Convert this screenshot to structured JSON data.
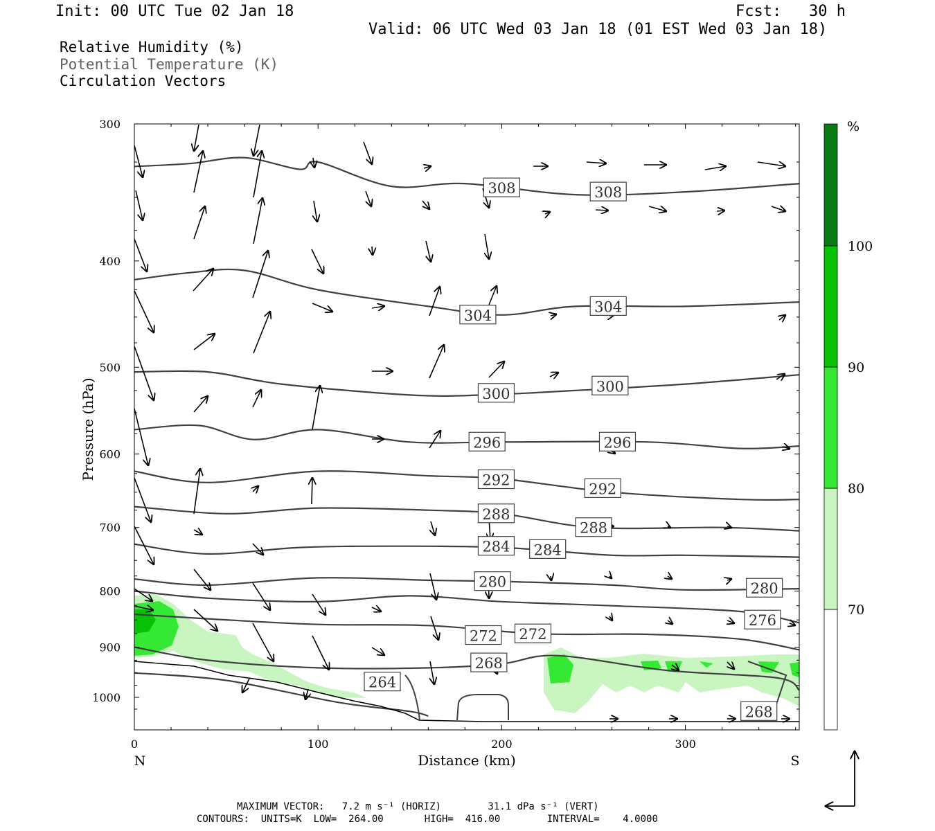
{
  "header": {
    "init": "Init: 00 UTC Tue 02 Jan 18",
    "fcst": "Fcst:   30 h",
    "valid": "Valid: 06 UTC Wed 03 Jan 18 (01 EST Wed 03 Jan 18)"
  },
  "legend": {
    "rh": "Relative Humidity (%)",
    "theta": "Potential Temperature (K)",
    "vectors": "Circulation Vectors"
  },
  "footer": {
    "max_vector": "MAXIMUM VECTOR:   7.2 m s⁻¹ (HORIZ)        31.1 dPa s⁻¹ (VERT)",
    "contours": "CONTOURS:  UNITS=K  LOW=  264.00       HIGH=  416.00        INTERVAL=    4.0000"
  },
  "colors": {
    "rh_fill": [
      "#c8f5c0",
      "#34e834",
      "#08c208",
      "#0a7a14"
    ],
    "isentrope": "#404040",
    "vector": "#000000"
  },
  "chart_data": {
    "type": "cross-section",
    "xlabel": "Distance (km)",
    "ylabel": "Pressure (hPa)",
    "x_ticks": [
      0,
      100,
      200,
      300
    ],
    "y_ticks": [
      300,
      400,
      500,
      600,
      700,
      800,
      900,
      1000
    ],
    "xlim": [
      0,
      362
    ],
    "ylim": [
      1040,
      300
    ],
    "y_scale": "log",
    "x_end_labels": {
      "left": "N",
      "right": "S"
    },
    "colorbar": {
      "unit": "%",
      "levels": [
        70,
        80,
        90,
        100
      ]
    },
    "isentropes": [
      {
        "value": 308,
        "points": [
          [
            0,
            328
          ],
          [
            30,
            326
          ],
          [
            60,
            322
          ],
          [
            90,
            330
          ],
          [
            100,
            325
          ],
          [
            140,
            342
          ],
          [
            180,
            340
          ],
          [
            240,
            348
          ],
          [
            300,
            346
          ],
          [
            362,
            340
          ]
        ],
        "labels": [
          [
            200,
            343
          ],
          [
            258,
            346
          ]
        ]
      },
      {
        "value": 304,
        "points": [
          [
            0,
            416
          ],
          [
            30,
            410
          ],
          [
            60,
            408
          ],
          [
            100,
            425
          ],
          [
            160,
            440
          ],
          [
            200,
            448
          ],
          [
            240,
            440
          ],
          [
            300,
            440
          ],
          [
            362,
            436
          ]
        ],
        "labels": [
          [
            187,
            448
          ],
          [
            258,
            440
          ]
        ]
      },
      {
        "value": 300,
        "points": [
          [
            0,
            505
          ],
          [
            40,
            505
          ],
          [
            80,
            518
          ],
          [
            150,
            530
          ],
          [
            190,
            530
          ],
          [
            240,
            525
          ],
          [
            300,
            518
          ],
          [
            362,
            508
          ]
        ],
        "labels": [
          [
            197,
            528
          ],
          [
            259,
            520
          ]
        ]
      },
      {
        "value": 296,
        "points": [
          [
            0,
            570
          ],
          [
            35,
            565
          ],
          [
            65,
            582
          ],
          [
            100,
            570
          ],
          [
            150,
            585
          ],
          [
            200,
            585
          ],
          [
            280,
            585
          ],
          [
            330,
            593
          ],
          [
            362,
            590
          ]
        ],
        "labels": [
          [
            192,
            585
          ],
          [
            263,
            585
          ]
        ]
      },
      {
        "value": 292,
        "points": [
          [
            0,
            622
          ],
          [
            40,
            637
          ],
          [
            100,
            622
          ],
          [
            160,
            628
          ],
          [
            200,
            632
          ],
          [
            260,
            650
          ],
          [
            330,
            660
          ],
          [
            362,
            660
          ]
        ],
        "labels": [
          [
            197,
            633
          ],
          [
            255,
            645
          ]
        ]
      },
      {
        "value": 288,
        "points": [
          [
            0,
            670
          ],
          [
            50,
            680
          ],
          [
            100,
            672
          ],
          [
            160,
            675
          ],
          [
            200,
            680
          ],
          [
            250,
            700
          ],
          [
            320,
            700
          ],
          [
            362,
            705
          ]
        ],
        "labels": [
          [
            197,
            680
          ],
          [
            250,
            700
          ]
        ]
      },
      {
        "value": 284,
        "points": [
          [
            0,
            725
          ],
          [
            40,
            740
          ],
          [
            90,
            730
          ],
          [
            140,
            728
          ],
          [
            200,
            730
          ],
          [
            260,
            742
          ],
          [
            300,
            742
          ],
          [
            362,
            745
          ]
        ],
        "labels": [
          [
            197,
            728
          ],
          [
            225,
            733
          ]
        ]
      },
      {
        "value": 280,
        "points": [
          [
            0,
            780
          ],
          [
            40,
            790
          ],
          [
            100,
            778
          ],
          [
            160,
            782
          ],
          [
            200,
            784
          ],
          [
            260,
            790
          ],
          [
            300,
            798
          ],
          [
            362,
            796
          ]
        ],
        "labels": [
          [
            195,
            784
          ],
          [
            343,
            795
          ]
        ]
      },
      {
        "value": 276,
        "points": [
          [
            0,
            800
          ],
          [
            40,
            812
          ],
          [
            100,
            818
          ],
          [
            150,
            808
          ],
          [
            200,
            818
          ],
          [
            260,
            825
          ],
          [
            330,
            835
          ],
          [
            362,
            855
          ]
        ],
        "labels": [
          [
            342,
            850
          ]
        ]
      },
      {
        "value": 272,
        "points": [
          [
            0,
            840
          ],
          [
            40,
            848
          ],
          [
            100,
            858
          ],
          [
            160,
            860
          ],
          [
            220,
            875
          ],
          [
            280,
            876
          ],
          [
            330,
            885
          ],
          [
            362,
            905
          ]
        ],
        "labels": [
          [
            190,
            878
          ],
          [
            217,
            875
          ]
        ]
      },
      {
        "value": 268,
        "points": [
          [
            0,
            900
          ],
          [
            40,
            925
          ],
          [
            100,
            940
          ],
          [
            160,
            940
          ],
          [
            200,
            932
          ],
          [
            230,
            916
          ],
          [
            290,
            945
          ],
          [
            350,
            960
          ],
          [
            362,
            985
          ]
        ],
        "labels": [
          [
            193,
            930
          ],
          [
            340,
            1030
          ]
        ]
      },
      {
        "value": 264,
        "points": [
          [
            0,
            950
          ],
          [
            50,
            965
          ],
          [
            110,
            1010
          ],
          [
            150,
            1030
          ],
          [
            160,
            1040
          ]
        ],
        "labels": [
          [
            135,
            968
          ]
        ]
      }
    ]
  }
}
